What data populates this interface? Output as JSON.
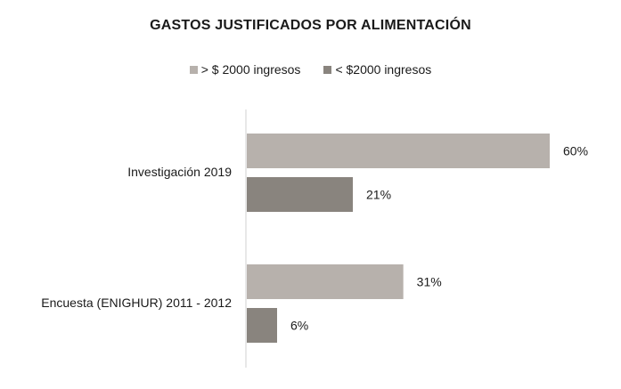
{
  "chart_data": {
    "type": "bar",
    "orientation": "horizontal",
    "title": "GASTOS JUSTIFICADOS POR ALIMENTACIÓN",
    "categories": [
      "Investigación 2019",
      "Encuesta (ENIGHUR) 2011 - 2012"
    ],
    "series": [
      {
        "name": "> $ 2000 ingresos",
        "values": [
          60,
          31
        ],
        "labels": [
          "60%",
          "31%"
        ],
        "color": "#b7b1ac"
      },
      {
        "name": "< $2000 ingresos",
        "values": [
          21,
          6
        ],
        "labels": [
          "21%",
          "6%"
        ],
        "color": "#89847e"
      }
    ],
    "xlim": [
      0,
      65
    ],
    "unit": "%",
    "grid": false,
    "legend_position": "top"
  }
}
